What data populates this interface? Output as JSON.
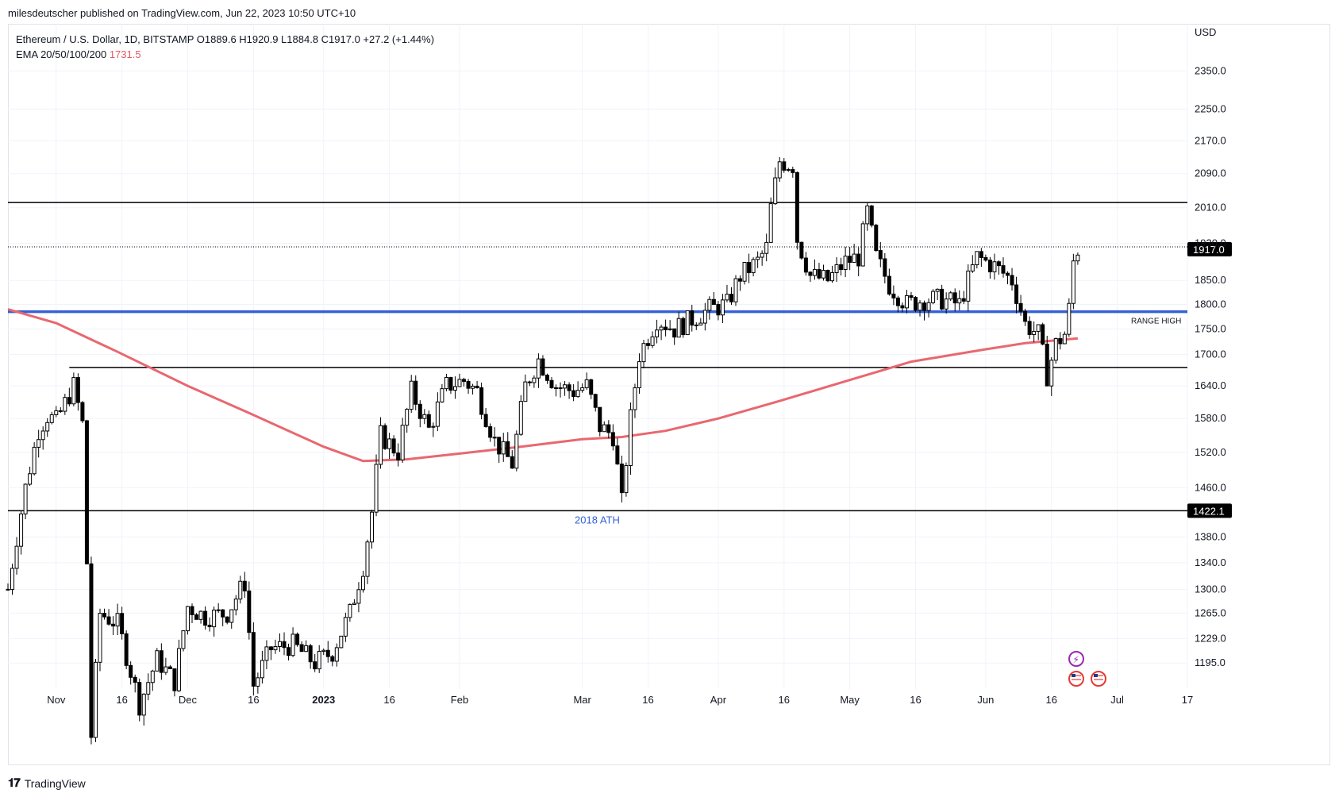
{
  "header": {
    "published_by": "milesdeutscher published on TradingView.com, Jun 22, 2023 10:50 UTC+10"
  },
  "legend": {
    "symbol_line": "Ethereum / U.S. Dollar, 1D, BITSTAMP  O1889.6  H1920.9  L1884.8  C1917.0  +27.2 (+1.44%)",
    "ema_label": "EMA 20/50/100/200",
    "ema_value": "1731.5"
  },
  "footer": {
    "logo_text": "𝟏𝟕",
    "brand": "TradingView"
  },
  "colors": {
    "up_candle": "#ffffff",
    "down_candle": "#000000",
    "ema_line": "#e8686f",
    "range_high_line": "#3661d6",
    "level_line": "#000000",
    "price_tag_bg": "#000000"
  },
  "icons": [
    "lightning-event-icon",
    "us-flag-event-icon",
    "us-flag-event-icon"
  ],
  "chart_data": {
    "type": "candlestick",
    "title": "Ethereum / U.S. Dollar, 1D, BITSTAMP",
    "currency_label": "USD",
    "y_scale": "log",
    "ylim": [
      1160,
      2480
    ],
    "y_ticks": [
      "2350.0",
      "2250.0",
      "2170.0",
      "2090.0",
      "2010.0",
      "1930.0",
      "1850.0",
      "1800.0",
      "1750.0",
      "1700.0",
      "1640.0",
      "1580.0",
      "1520.0",
      "1460.0",
      "1380.0",
      "1340.0",
      "1300.0",
      "1265.0",
      "1229.0",
      "1195.0"
    ],
    "x_ticks": [
      "Nov",
      "16",
      "Dec",
      "16",
      "2023",
      "16",
      "Feb",
      "Mar",
      "16",
      "Apr",
      "16",
      "May",
      "16",
      "Jun",
      "16",
      "Jul",
      "17"
    ],
    "x_range": [
      "2022-10-21",
      "2023-07-17"
    ],
    "horizontal_levels": [
      {
        "price": 2022,
        "color": "#000000",
        "label": ""
      },
      {
        "price": 1785,
        "color": "#3661d6",
        "label": "RANGE HIGH"
      },
      {
        "price": 1675,
        "color": "#000000",
        "label": ""
      },
      {
        "price": 1422.1,
        "color": "#000000",
        "label": "1422.1"
      }
    ],
    "annotations": [
      "2018 ATH"
    ],
    "last_price": "1917.0",
    "ema200": [
      [
        "2022-10-21",
        1790
      ],
      [
        "2022-11-01",
        1762
      ],
      [
        "2022-11-15",
        1705
      ],
      [
        "2022-12-01",
        1640
      ],
      [
        "2022-12-15",
        1590
      ],
      [
        "2023-01-01",
        1530
      ],
      [
        "2023-01-10",
        1505
      ],
      [
        "2023-01-20",
        1508
      ],
      [
        "2023-02-01",
        1518
      ],
      [
        "2023-02-15",
        1530
      ],
      [
        "2023-03-01",
        1543
      ],
      [
        "2023-03-10",
        1547
      ],
      [
        "2023-03-20",
        1558
      ],
      [
        "2023-04-01",
        1580
      ],
      [
        "2023-04-15",
        1612
      ],
      [
        "2023-05-01",
        1651
      ],
      [
        "2023-05-15",
        1686
      ],
      [
        "2023-06-01",
        1710
      ],
      [
        "2023-06-10",
        1722
      ],
      [
        "2023-06-22",
        1731.5
      ]
    ],
    "close_series": [
      [
        "2022-10-21",
        1300
      ],
      [
        "2022-10-25",
        1460
      ],
      [
        "2022-10-28",
        1560
      ],
      [
        "2022-10-30",
        1585
      ],
      [
        "2022-11-01",
        1575
      ],
      [
        "2022-11-05",
        1640
      ],
      [
        "2022-11-07",
        1570
      ],
      [
        "2022-11-08",
        1340
      ],
      [
        "2022-11-09",
        1100
      ],
      [
        "2022-11-11",
        1265
      ],
      [
        "2022-11-15",
        1250
      ],
      [
        "2022-11-20",
        1140
      ],
      [
        "2022-11-24",
        1200
      ],
      [
        "2022-11-28",
        1170
      ],
      [
        "2022-12-01",
        1275
      ],
      [
        "2022-12-05",
        1260
      ],
      [
        "2022-12-10",
        1265
      ],
      [
        "2022-12-14",
        1310
      ],
      [
        "2022-12-16",
        1165
      ],
      [
        "2022-12-20",
        1215
      ],
      [
        "2022-12-25",
        1220
      ],
      [
        "2022-12-30",
        1195
      ],
      [
        "2023-01-03",
        1210
      ],
      [
        "2023-01-07",
        1265
      ],
      [
        "2023-01-10",
        1335
      ],
      [
        "2023-01-12",
        1420
      ],
      [
        "2023-01-14",
        1550
      ],
      [
        "2023-01-18",
        1520
      ],
      [
        "2023-01-21",
        1630
      ],
      [
        "2023-01-25",
        1560
      ],
      [
        "2023-01-29",
        1640
      ],
      [
        "2023-02-02",
        1650
      ],
      [
        "2023-02-05",
        1630
      ],
      [
        "2023-02-09",
        1540
      ],
      [
        "2023-02-13",
        1500
      ],
      [
        "2023-02-16",
        1640
      ],
      [
        "2023-02-19",
        1690
      ],
      [
        "2023-02-23",
        1640
      ],
      [
        "2023-02-27",
        1630
      ],
      [
        "2023-03-02",
        1640
      ],
      [
        "2023-03-05",
        1565
      ],
      [
        "2023-03-08",
        1550
      ],
      [
        "2023-03-10",
        1435
      ],
      [
        "2023-03-12",
        1580
      ],
      [
        "2023-03-14",
        1700
      ],
      [
        "2023-03-18",
        1770
      ],
      [
        "2023-03-22",
        1750
      ],
      [
        "2023-03-26",
        1770
      ],
      [
        "2023-03-30",
        1790
      ],
      [
        "2023-04-03",
        1800
      ],
      [
        "2023-04-06",
        1860
      ],
      [
        "2023-04-10",
        1890
      ],
      [
        "2023-04-12",
        1920
      ],
      [
        "2023-04-13",
        2010
      ],
      [
        "2023-04-15",
        2120
      ],
      [
        "2023-04-18",
        2110
      ],
      [
        "2023-04-19",
        1940
      ],
      [
        "2023-04-22",
        1860
      ],
      [
        "2023-04-26",
        1850
      ],
      [
        "2023-04-30",
        1890
      ],
      [
        "2023-05-03",
        1900
      ],
      [
        "2023-05-05",
        2000
      ],
      [
        "2023-05-07",
        1900
      ],
      [
        "2023-05-10",
        1840
      ],
      [
        "2023-05-14",
        1800
      ],
      [
        "2023-05-18",
        1810
      ],
      [
        "2023-05-22",
        1810
      ],
      [
        "2023-05-26",
        1800
      ],
      [
        "2023-05-30",
        1900
      ],
      [
        "2023-06-03",
        1880
      ],
      [
        "2023-06-07",
        1850
      ],
      [
        "2023-06-10",
        1760
      ],
      [
        "2023-06-13",
        1740
      ],
      [
        "2023-06-15",
        1660
      ],
      [
        "2023-06-17",
        1720
      ],
      [
        "2023-06-19",
        1740
      ],
      [
        "2023-06-20",
        1790
      ],
      [
        "2023-06-21",
        1889.6
      ],
      [
        "2023-06-22",
        1917.0
      ]
    ]
  }
}
